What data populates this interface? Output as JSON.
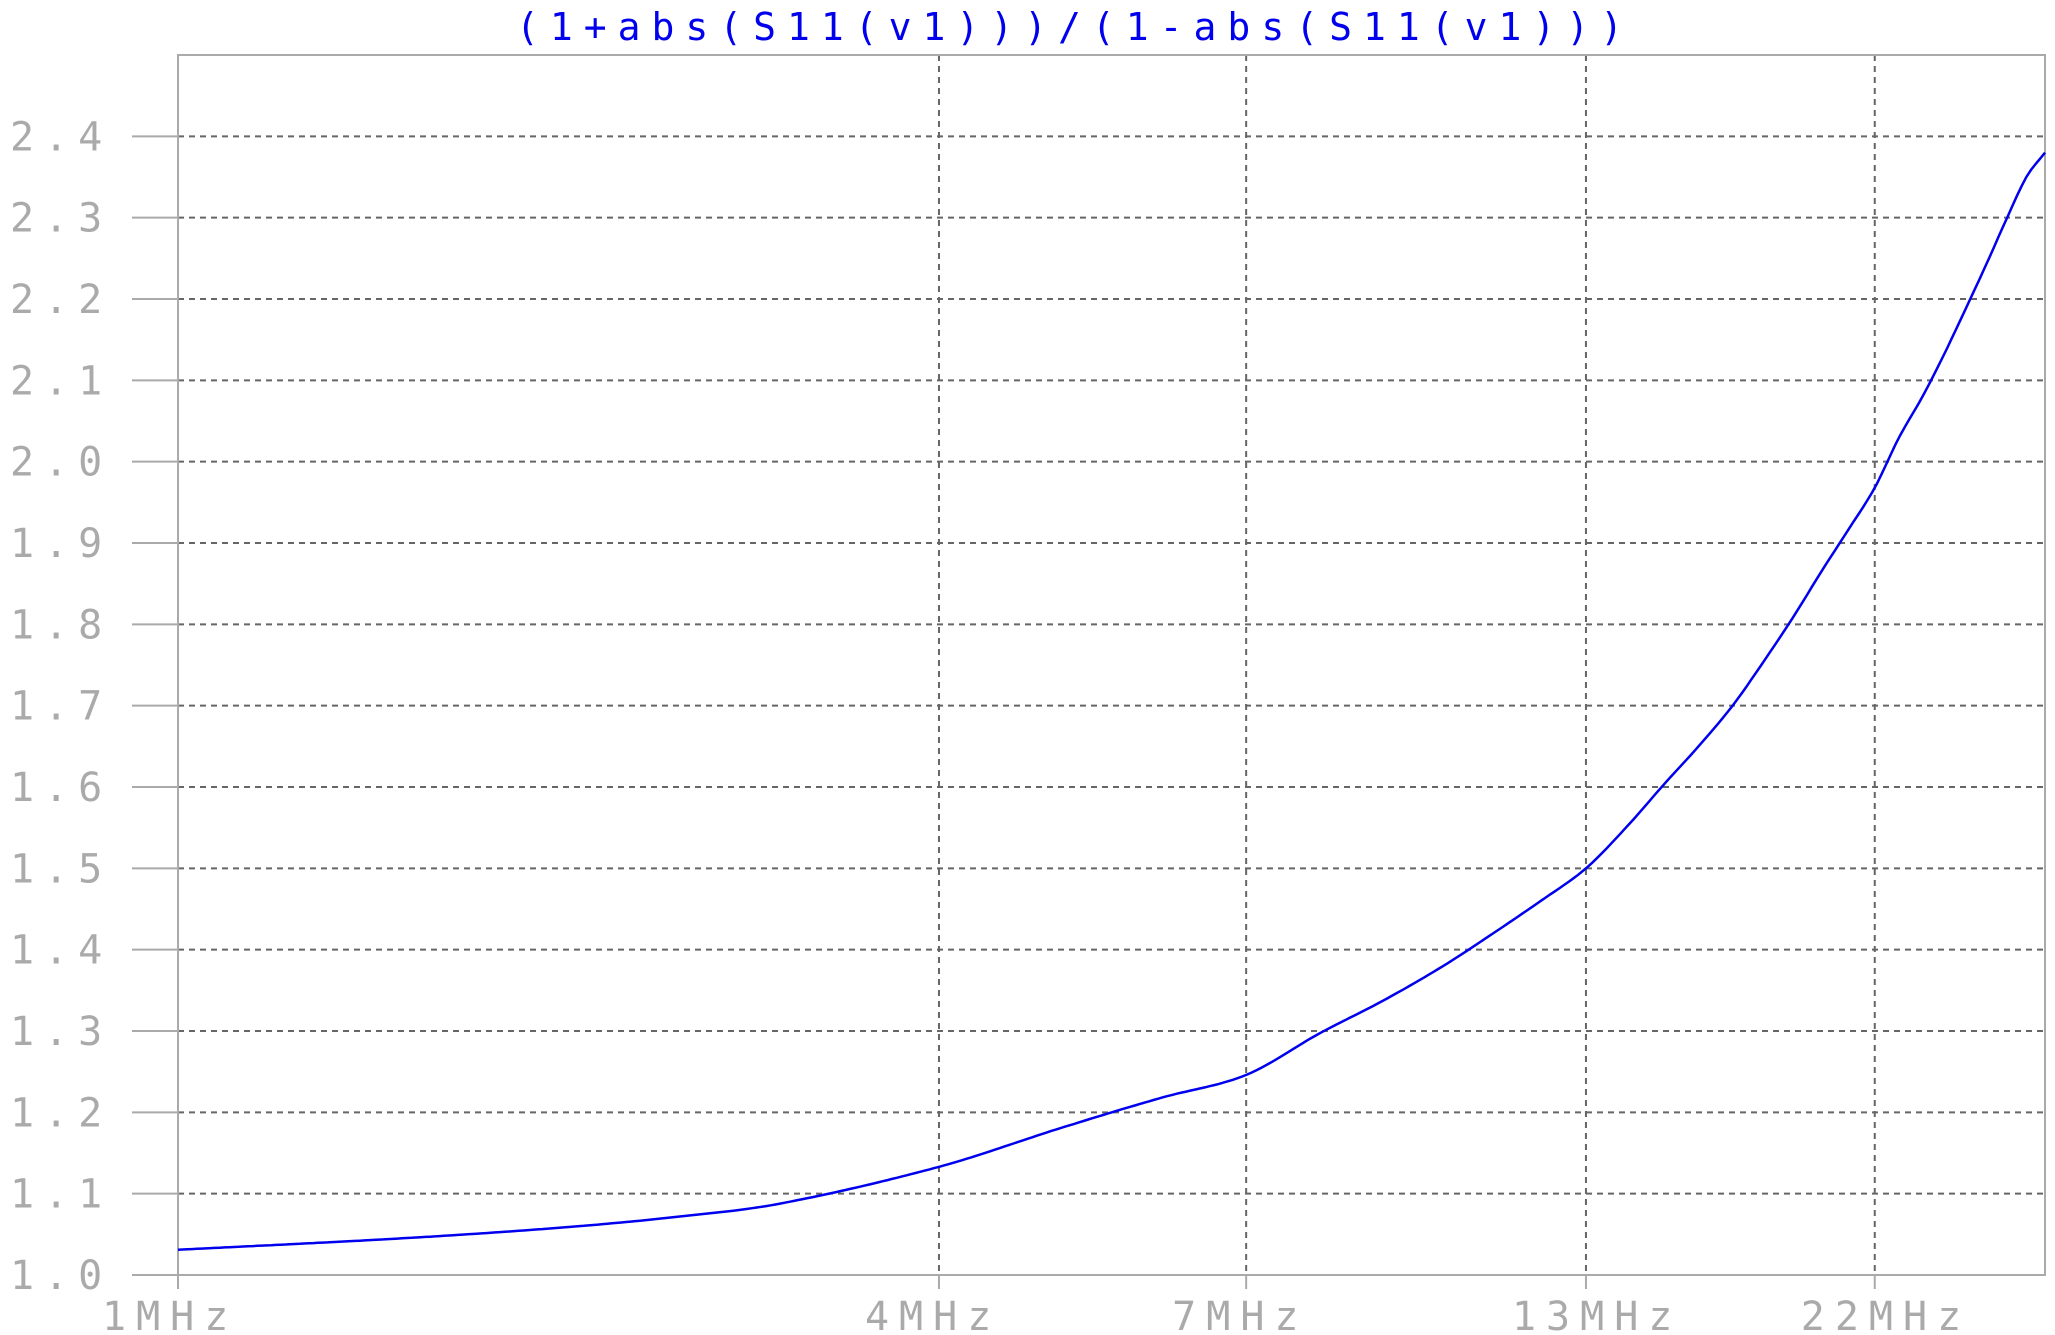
{
  "chart_data": {
    "type": "line",
    "title": "(1+abs(S11(v1)))/(1-abs(S11(v1)))",
    "title_color": "#0000ee",
    "line_color": "#0000ee",
    "axis_color": "#aaaaaa",
    "grid_color": "#666666",
    "label_color": "#aaaaaa",
    "background": "#ffffff",
    "grid": true,
    "grid_style": "dashed",
    "xscale": "log",
    "xunit": "MHz",
    "xlim": [
      1,
      30
    ],
    "ylim": [
      1.0,
      2.5
    ],
    "xticks": [
      {
        "value": 1,
        "label": "1MHz"
      },
      {
        "value": 4,
        "label": "4MHz"
      },
      {
        "value": 7,
        "label": "7MHz"
      },
      {
        "value": 13,
        "label": "13MHz"
      },
      {
        "value": 22,
        "label": "22MHz"
      }
    ],
    "yticks": [
      {
        "value": 1.0,
        "label": "1.0"
      },
      {
        "value": 1.1,
        "label": "1.1"
      },
      {
        "value": 1.2,
        "label": "1.2"
      },
      {
        "value": 1.3,
        "label": "1.3"
      },
      {
        "value": 1.4,
        "label": "1.4"
      },
      {
        "value": 1.5,
        "label": "1.5"
      },
      {
        "value": 1.6,
        "label": "1.6"
      },
      {
        "value": 1.7,
        "label": "1.7"
      },
      {
        "value": 1.8,
        "label": "1.8"
      },
      {
        "value": 1.9,
        "label": "1.9"
      },
      {
        "value": 2.0,
        "label": "2.0"
      },
      {
        "value": 2.1,
        "label": "2.1"
      },
      {
        "value": 2.2,
        "label": "2.2"
      },
      {
        "value": 2.3,
        "label": "2.3"
      },
      {
        "value": 2.4,
        "label": "2.4"
      }
    ],
    "series": [
      {
        "x": [
          1,
          1.5,
          2,
          2.5,
          3,
          4,
          5,
          6,
          7,
          8,
          9,
          10,
          11,
          12,
          13,
          14,
          15,
          16,
          17,
          18,
          19,
          20,
          21,
          22,
          23,
          24,
          25,
          26,
          27,
          28,
          29,
          30
        ],
        "y": [
          1.031,
          1.045,
          1.058,
          1.072,
          1.088,
          1.133,
          1.181,
          1.218,
          1.246,
          1.297,
          1.338,
          1.379,
          1.421,
          1.461,
          1.5,
          1.551,
          1.604,
          1.652,
          1.701,
          1.756,
          1.811,
          1.867,
          1.918,
          1.968,
          2.03,
          2.08,
          2.134,
          2.19,
          2.245,
          2.3,
          2.35,
          2.38
        ]
      }
    ]
  }
}
